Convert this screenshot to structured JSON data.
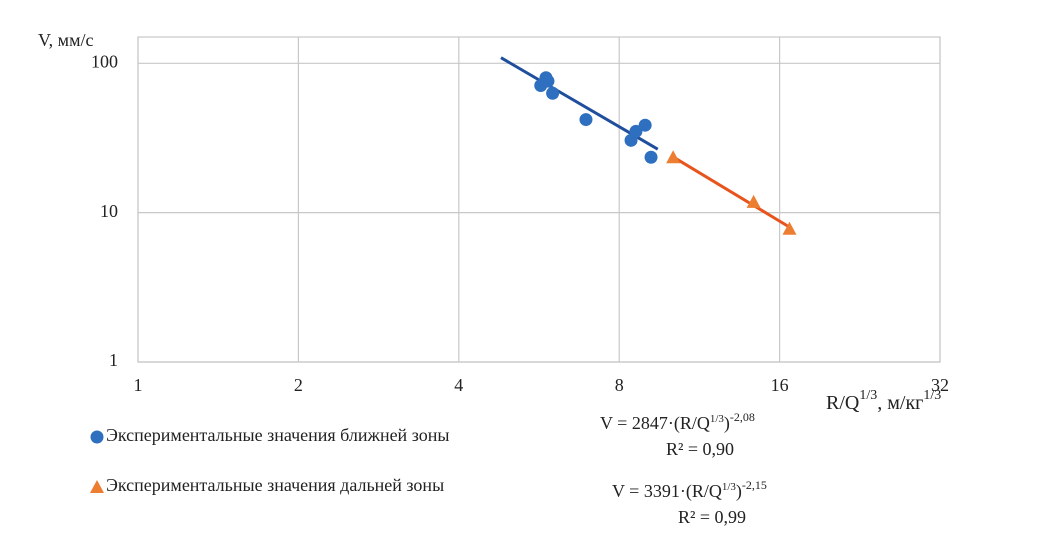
{
  "chart_data": {
    "type": "scatter",
    "y_label": "V, мм/с",
    "x_label": {
      "main": "R/Q",
      "sup": "1/3",
      "unit": ", м/кг",
      "unit_sup": "1/3"
    },
    "log_x": true,
    "log_y": true,
    "grid": true,
    "xlim": [
      1,
      32
    ],
    "ylim": [
      1,
      150
    ],
    "xticks": [
      1,
      2,
      4,
      8,
      16,
      32
    ],
    "yticks": [
      1,
      10,
      100
    ],
    "series": [
      {
        "name": "Экспериментальные значения ближней зоны",
        "color": "#2e6fbf",
        "marker": "circle",
        "x": [
          5.83,
          5.88,
          5.7,
          6.0,
          6.93,
          8.42,
          8.6,
          8.95,
          9.18
        ],
        "values": [
          80,
          76,
          71,
          63,
          42,
          30.5,
          35,
          38.5,
          23.5
        ],
        "trendline": {
          "color": "#1f4e9c",
          "x": [
            4.8,
            9.45
          ],
          "values": [
            109,
            26.6
          ],
          "equation": [
            "V = 2847·(R/Q",
            "1/3",
            ")",
            "-2,08"
          ],
          "r2": "R² = 0,90"
        }
      },
      {
        "name": "Экспериментальные значения дальней зоны",
        "color": "#ed7d31",
        "marker": "triangle",
        "x": [
          10.1,
          14.3,
          16.7
        ],
        "values": [
          23.5,
          11.8,
          7.8
        ],
        "trendline": {
          "color": "#e8541e",
          "x": [
            10.1,
            16.7
          ],
          "values": [
            23.6,
            8.0
          ],
          "equation": [
            "V = 3391·(R/Q",
            "1/3",
            ")",
            "-2,15"
          ],
          "r2": "R² = 0,99"
        }
      }
    ]
  }
}
